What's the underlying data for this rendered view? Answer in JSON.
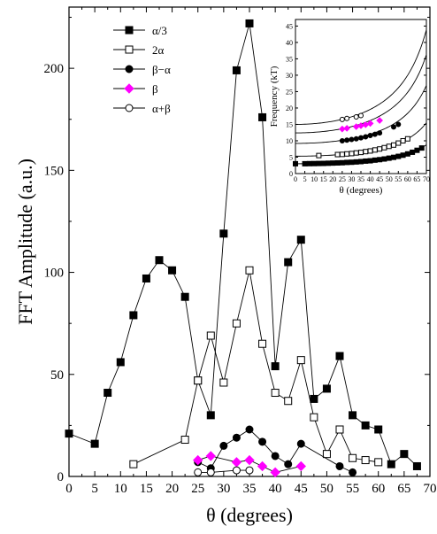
{
  "chart_data": [
    {
      "type": "line",
      "title": "",
      "xlabel": "θ (degrees)",
      "ylabel": "FFT Amplitude (a.u.)",
      "xlim": [
        0,
        70
      ],
      "ylim": [
        0,
        230
      ],
      "xticks": [
        0,
        5,
        10,
        15,
        20,
        25,
        30,
        35,
        40,
        45,
        50,
        55,
        60,
        65,
        70
      ],
      "yticks": [
        0,
        50,
        100,
        150,
        200
      ],
      "grid": false,
      "legend_position": "top-left",
      "series": [
        {
          "name": "α/3",
          "marker": "filled-square",
          "color": "#000000",
          "x": [
            0,
            5,
            7.5,
            10,
            12.5,
            15,
            17.5,
            20,
            22.5,
            25,
            27.5,
            30,
            32.5,
            35,
            37.5,
            40,
            42.5,
            45,
            47.5,
            50,
            52.5,
            55,
            57.5,
            60,
            62.5,
            65,
            67.5
          ],
          "y": [
            21,
            16,
            41,
            56,
            79,
            97,
            106,
            101,
            88,
            47,
            30,
            119,
            199,
            222,
            176,
            54,
            105,
            116,
            38,
            43,
            59,
            30,
            25,
            23,
            6,
            11,
            5
          ]
        },
        {
          "name": "2α",
          "marker": "open-square",
          "color": "#000000",
          "x": [
            12.5,
            22.5,
            25,
            27.5,
            30,
            32.5,
            35,
            37.5,
            40,
            42.5,
            45,
            47.5,
            50,
            52.5,
            55,
            57.5,
            60
          ],
          "y": [
            6,
            18,
            47,
            69,
            46,
            75,
            101,
            65,
            41,
            37,
            57,
            29,
            11,
            23,
            9,
            8,
            7
          ]
        },
        {
          "name": "β−α",
          "marker": "filled-circle",
          "color": "#000000",
          "x": [
            25,
            27.5,
            30,
            32.5,
            35,
            37.5,
            40,
            42.5,
            45,
            52.5,
            55
          ],
          "y": [
            7,
            4,
            15,
            19,
            23,
            17,
            10,
            6,
            16,
            5,
            2
          ]
        },
        {
          "name": "β",
          "marker": "filled-diamond",
          "color": "#ff00ff",
          "x": [
            25,
            27.5,
            32.5,
            35,
            37.5,
            40,
            45
          ],
          "y": [
            8,
            10,
            7,
            8,
            5,
            2,
            5
          ]
        },
        {
          "name": "α+β",
          "marker": "open-circle",
          "color": "#000000",
          "x": [
            25,
            27.5,
            32.5,
            35
          ],
          "y": [
            2,
            2,
            3,
            3
          ]
        }
      ]
    },
    {
      "type": "scatter",
      "title": "",
      "xlabel": "θ (degrees)",
      "ylabel": "Frequency (kT)",
      "xlim": [
        0,
        70
      ],
      "ylim": [
        0,
        47
      ],
      "xticks": [
        0,
        5,
        10,
        15,
        20,
        25,
        30,
        35,
        40,
        45,
        50,
        55,
        60,
        65,
        70
      ],
      "yticks": [
        0,
        5,
        10,
        15,
        20,
        25,
        30,
        35,
        40,
        45
      ],
      "grid": false,
      "fit_curves_f0": [
        3,
        5.3,
        9.2,
        12.4,
        15
      ],
      "series": [
        {
          "marker": "filled-square",
          "color": "#000000",
          "x": [
            0,
            5,
            7.5,
            10,
            12.5,
            15,
            17.5,
            20,
            22.5,
            25,
            27.5,
            30,
            32.5,
            35,
            37.5,
            40,
            42.5,
            45,
            47.5,
            50,
            52.5,
            55,
            57.5,
            60,
            62.5,
            65,
            67.5
          ],
          "y": [
            3,
            3,
            3.03,
            3.05,
            3.08,
            3.1,
            3.15,
            3.2,
            3.25,
            3.3,
            3.4,
            3.45,
            3.55,
            3.65,
            3.8,
            3.9,
            4.1,
            4.25,
            4.45,
            4.7,
            4.95,
            5.25,
            5.6,
            6,
            6.5,
            7.1,
            7.8
          ]
        },
        {
          "marker": "open-square",
          "color": "#000000",
          "x": [
            12.5,
            22.5,
            25,
            27.5,
            30,
            32.5,
            35,
            37.5,
            40,
            42.5,
            45,
            47.5,
            50,
            52.5,
            55,
            57.5,
            60
          ],
          "y": [
            5.5,
            5.8,
            5.85,
            6,
            6.1,
            6.3,
            6.45,
            6.7,
            6.9,
            7.2,
            7.5,
            7.9,
            8.3,
            8.7,
            9.3,
            10,
            10.6
          ]
        },
        {
          "marker": "filled-circle",
          "color": "#000000",
          "x": [
            25,
            27.5,
            30,
            32.5,
            35,
            37.5,
            40,
            42.5,
            45,
            52.5,
            55
          ],
          "y": [
            10,
            10.2,
            10.4,
            10.6,
            10.9,
            11.2,
            11.6,
            12,
            12.4,
            14.2,
            15
          ]
        },
        {
          "marker": "filled-diamond",
          "color": "#ff00ff",
          "x": [
            25,
            27.5,
            32.5,
            35,
            37.5,
            40,
            45
          ],
          "y": [
            13.6,
            13.8,
            14.3,
            14.6,
            14.9,
            15.3,
            16.2
          ]
        },
        {
          "marker": "open-circle",
          "color": "#000000",
          "x": [
            25,
            27.5,
            32.5,
            35
          ],
          "y": [
            16.5,
            16.8,
            17.3,
            17.7
          ]
        }
      ]
    }
  ]
}
